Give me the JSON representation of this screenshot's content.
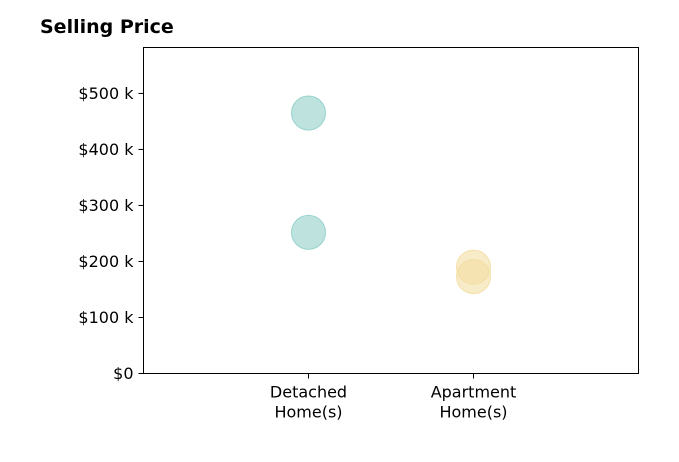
{
  "chart_data": {
    "type": "scatter",
    "title": "Selling Price",
    "xlabel": "",
    "ylabel": "",
    "categories": [
      [
        "Detached",
        "Home(s)"
      ],
      [
        "Apartment",
        "Home(s)"
      ]
    ],
    "yticks": [
      {
        "value": 0,
        "label": "$0"
      },
      {
        "value": 100000,
        "label": "$100 k"
      },
      {
        "value": 200000,
        "label": "$200 k"
      },
      {
        "value": 300000,
        "label": "$300 k"
      },
      {
        "value": 400000,
        "label": "$400 k"
      },
      {
        "value": 500000,
        "label": "$500 k"
      }
    ],
    "ylim": [
      0,
      582000
    ],
    "xlim": [
      -1,
      2
    ],
    "grid": false,
    "series": [
      {
        "category_index": 0,
        "color": "#8fcfc8",
        "values": [
          465000,
          252000
        ]
      },
      {
        "category_index": 1,
        "color": "#f3dda0",
        "values": [
          190000,
          173000
        ]
      }
    ]
  }
}
